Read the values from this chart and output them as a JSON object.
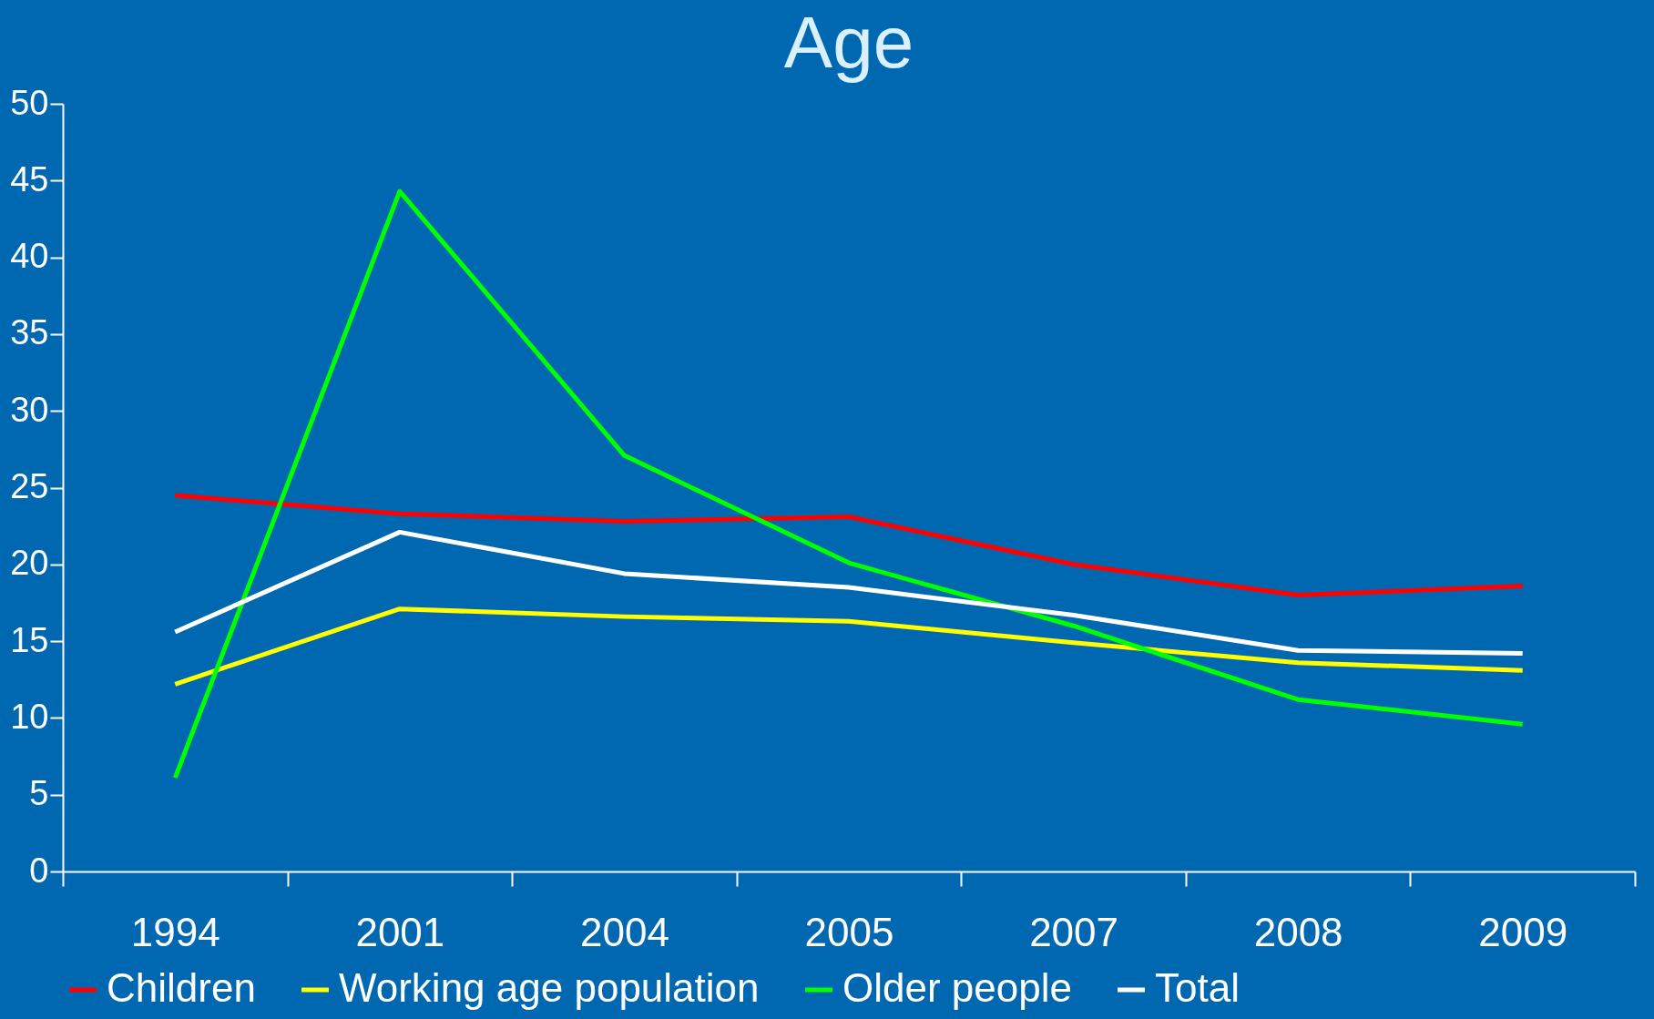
{
  "chart_data": {
    "type": "line",
    "title": "Age",
    "categories": [
      "1994",
      "2001",
      "2004",
      "2005",
      "2007",
      "2008",
      "2009"
    ],
    "series": [
      {
        "name": "Children",
        "color": "#ff0000",
        "values": [
          24.5,
          23.3,
          22.8,
          23.1,
          20.0,
          18.0,
          18.6
        ]
      },
      {
        "name": "Working age population",
        "color": "#ffff00",
        "values": [
          12.2,
          17.1,
          16.6,
          16.3,
          14.9,
          13.6,
          13.1
        ]
      },
      {
        "name": "Older people",
        "color": "#00ff00",
        "values": [
          6.1,
          44.3,
          27.1,
          20.1,
          16.0,
          11.2,
          9.6
        ]
      },
      {
        "name": "Total",
        "color": "#ffffff",
        "values": [
          15.6,
          22.1,
          19.4,
          18.5,
          16.7,
          14.4,
          14.2
        ]
      }
    ],
    "ylim": [
      0,
      50
    ],
    "yticks": [
      0,
      5,
      10,
      15,
      20,
      25,
      30,
      35,
      40,
      45,
      50
    ],
    "grid": false,
    "legend": "bottom",
    "marker": "none",
    "line_style": "solid"
  }
}
